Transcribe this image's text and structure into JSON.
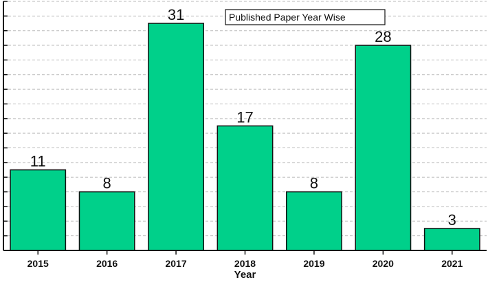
{
  "chart_data": {
    "type": "bar",
    "categories": [
      "2015",
      "2016",
      "2017",
      "2018",
      "2019",
      "2020",
      "2021"
    ],
    "values": [
      11,
      8,
      31,
      17,
      8,
      28,
      3
    ],
    "xlabel": "Year",
    "ylabel": "",
    "ylim": [
      0,
      34
    ],
    "grid": true,
    "legend": {
      "text": "Published Paper Year Wise",
      "placement": "top-right"
    },
    "bar_color": "#00d08a",
    "bar_edge_color": "#111111",
    "grid_color": "#bbbbbb"
  }
}
